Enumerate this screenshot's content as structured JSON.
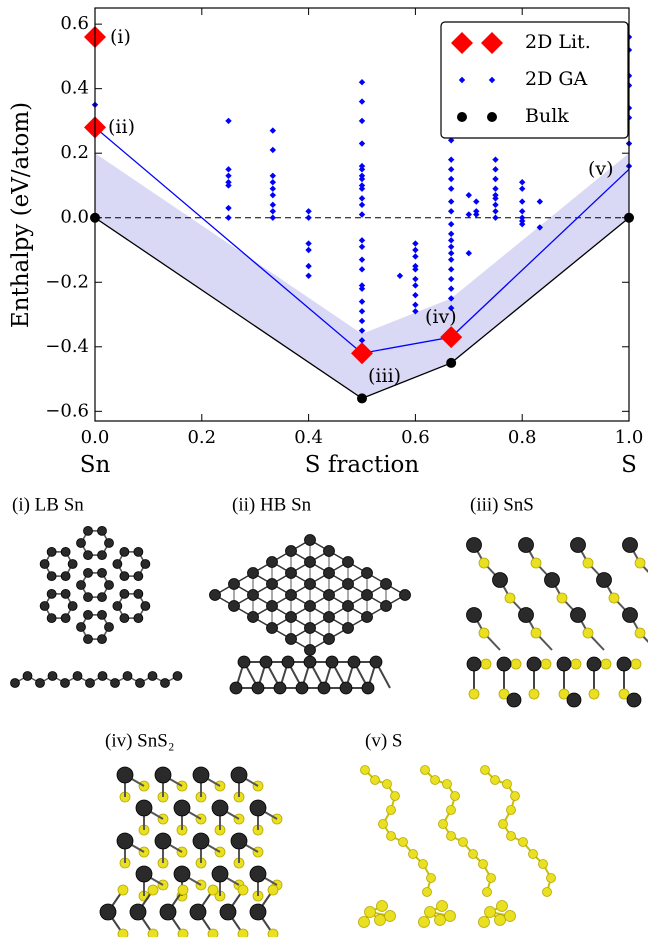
{
  "chart_data": {
    "type": "scatter",
    "y_label": "Enthalpy (eV/atom)",
    "x_label": "S fraction",
    "x_end_labels": [
      "Sn",
      "S"
    ],
    "xlim": [
      0,
      1
    ],
    "ylim": [
      -0.63,
      0.65
    ],
    "xticks": [
      {
        "value": 0,
        "label": "0.0"
      },
      0.2,
      0.4,
      0.6,
      0.8,
      {
        "value": 1,
        "label": "1.0"
      }
    ],
    "yticks": [
      {
        "value": -0.6,
        "label": "−0.6"
      },
      {
        "value": -0.4,
        "label": "−0.4"
      },
      {
        "value": -0.2,
        "label": "−0.2"
      },
      {
        "value": 0,
        "label": "0.0"
      },
      0.2,
      0.4,
      0.6
    ],
    "reference_line_y": 0,
    "legend_position": "upper right",
    "shade": {
      "color": "#d9d9f5",
      "x": [
        0,
        0.5,
        0.667,
        1
      ],
      "lower": [
        0,
        -0.56,
        -0.45,
        0
      ],
      "upper": [
        0.2,
        -0.36,
        -0.25,
        0.2
      ]
    },
    "lines": [
      {
        "color": "#0000ff",
        "x": [
          0,
          0.5,
          0.667,
          1
        ],
        "values": [
          0.28,
          -0.42,
          -0.37,
          0.15
        ]
      },
      {
        "color": "#000000",
        "x": [
          0,
          0.5,
          0.667,
          1
        ],
        "values": [
          0,
          -0.56,
          -0.45,
          0
        ]
      }
    ],
    "series": [
      {
        "name": "2D Lit.",
        "color": "#ff0000",
        "marker": "diamond-large",
        "x": [
          0,
          0,
          0.5,
          0.667
        ],
        "values": [
          0.56,
          0.28,
          -0.42,
          -0.37
        ]
      },
      {
        "name": "2D GA",
        "color": "#0000ff",
        "marker": "diamond",
        "x": [
          0,
          0,
          0,
          0.25,
          0.25,
          0.25,
          0.25,
          0.25,
          0.25,
          0.25,
          0.333,
          0.333,
          0.333,
          0.333,
          0.333,
          0.333,
          0.333,
          0.333,
          0.333,
          0.4,
          0.4,
          0.4,
          0.4,
          0.4,
          0.4,
          0.5,
          0.5,
          0.5,
          0.5,
          0.5,
          0.5,
          0.5,
          0.5,
          0.5,
          0.5,
          0.5,
          0.5,
          0.5,
          0.5,
          0.5,
          0.5,
          0.5,
          0.5,
          0.5,
          0.5,
          0.5,
          0.5,
          0.5,
          0.5,
          0.571,
          0.6,
          0.6,
          0.6,
          0.6,
          0.6,
          0.6,
          0.6,
          0.6,
          0.6,
          0.6,
          0.667,
          0.667,
          0.667,
          0.667,
          0.667,
          0.667,
          0.667,
          0.667,
          0.667,
          0.667,
          0.667,
          0.667,
          0.667,
          0.667,
          0.667,
          0.667,
          0.667,
          0.667,
          0.7,
          0.7,
          0.7,
          0.714,
          0.714,
          0.714,
          0.75,
          0.75,
          0.75,
          0.75,
          0.75,
          0.75,
          0.75,
          0.75,
          0.75,
          0.8,
          0.8,
          0.8,
          0.8,
          0.8,
          0.8,
          0.8,
          0.833,
          0.833,
          1,
          1,
          1,
          1,
          1,
          1,
          1,
          1
        ],
        "values": [
          0.56,
          0.35,
          0.28,
          0.3,
          0.15,
          0.13,
          0.11,
          0.1,
          0.03,
          0.0,
          0.27,
          0.21,
          0.13,
          0.11,
          0.09,
          0.07,
          0.04,
          0.02,
          0.0,
          0.02,
          0.0,
          -0.08,
          -0.1,
          -0.15,
          -0.18,
          0.42,
          0.36,
          0.3,
          0.23,
          0.16,
          0.15,
          0.13,
          0.12,
          0.1,
          0.09,
          0.06,
          0.04,
          0.01,
          -0.07,
          -0.09,
          -0.13,
          -0.16,
          -0.21,
          -0.22,
          -0.26,
          -0.29,
          -0.32,
          -0.35,
          -0.38,
          -0.18,
          -0.08,
          -0.12,
          -0.16,
          -0.19,
          -0.21,
          -0.24,
          -0.27,
          -0.29,
          -0.15,
          -0.1,
          0.24,
          0.18,
          0.15,
          0.12,
          0.09,
          0.05,
          0.02,
          -0.02,
          -0.05,
          -0.07,
          -0.09,
          -0.11,
          -0.13,
          -0.16,
          -0.19,
          -0.22,
          -0.25,
          -0.28,
          0.07,
          0.01,
          -0.11,
          0.05,
          0.02,
          0.01,
          0.18,
          0.15,
          0.12,
          0.09,
          0.07,
          0.06,
          0.04,
          0.02,
          0.0,
          0.11,
          0.09,
          0.05,
          0.02,
          0.0,
          -0.01,
          -0.02,
          0.05,
          -0.03,
          0.56,
          0.52,
          0.44,
          0.41,
          0.34,
          0.31,
          0.23,
          0.16
        ]
      },
      {
        "name": "Bulk",
        "color": "#000000",
        "marker": "circle",
        "x": [
          0,
          0.5,
          0.667,
          1
        ],
        "values": [
          0,
          -0.56,
          -0.45,
          0
        ]
      }
    ],
    "annotations": [
      "(i)",
      "(ii)",
      "(iii)",
      "(iv)",
      "(v)"
    ]
  },
  "structures": {
    "labels": [
      "(i) LB Sn",
      "(ii) HB Sn",
      "(iii) SnS",
      "(iv) SnS₂",
      "(v) S"
    ]
  }
}
